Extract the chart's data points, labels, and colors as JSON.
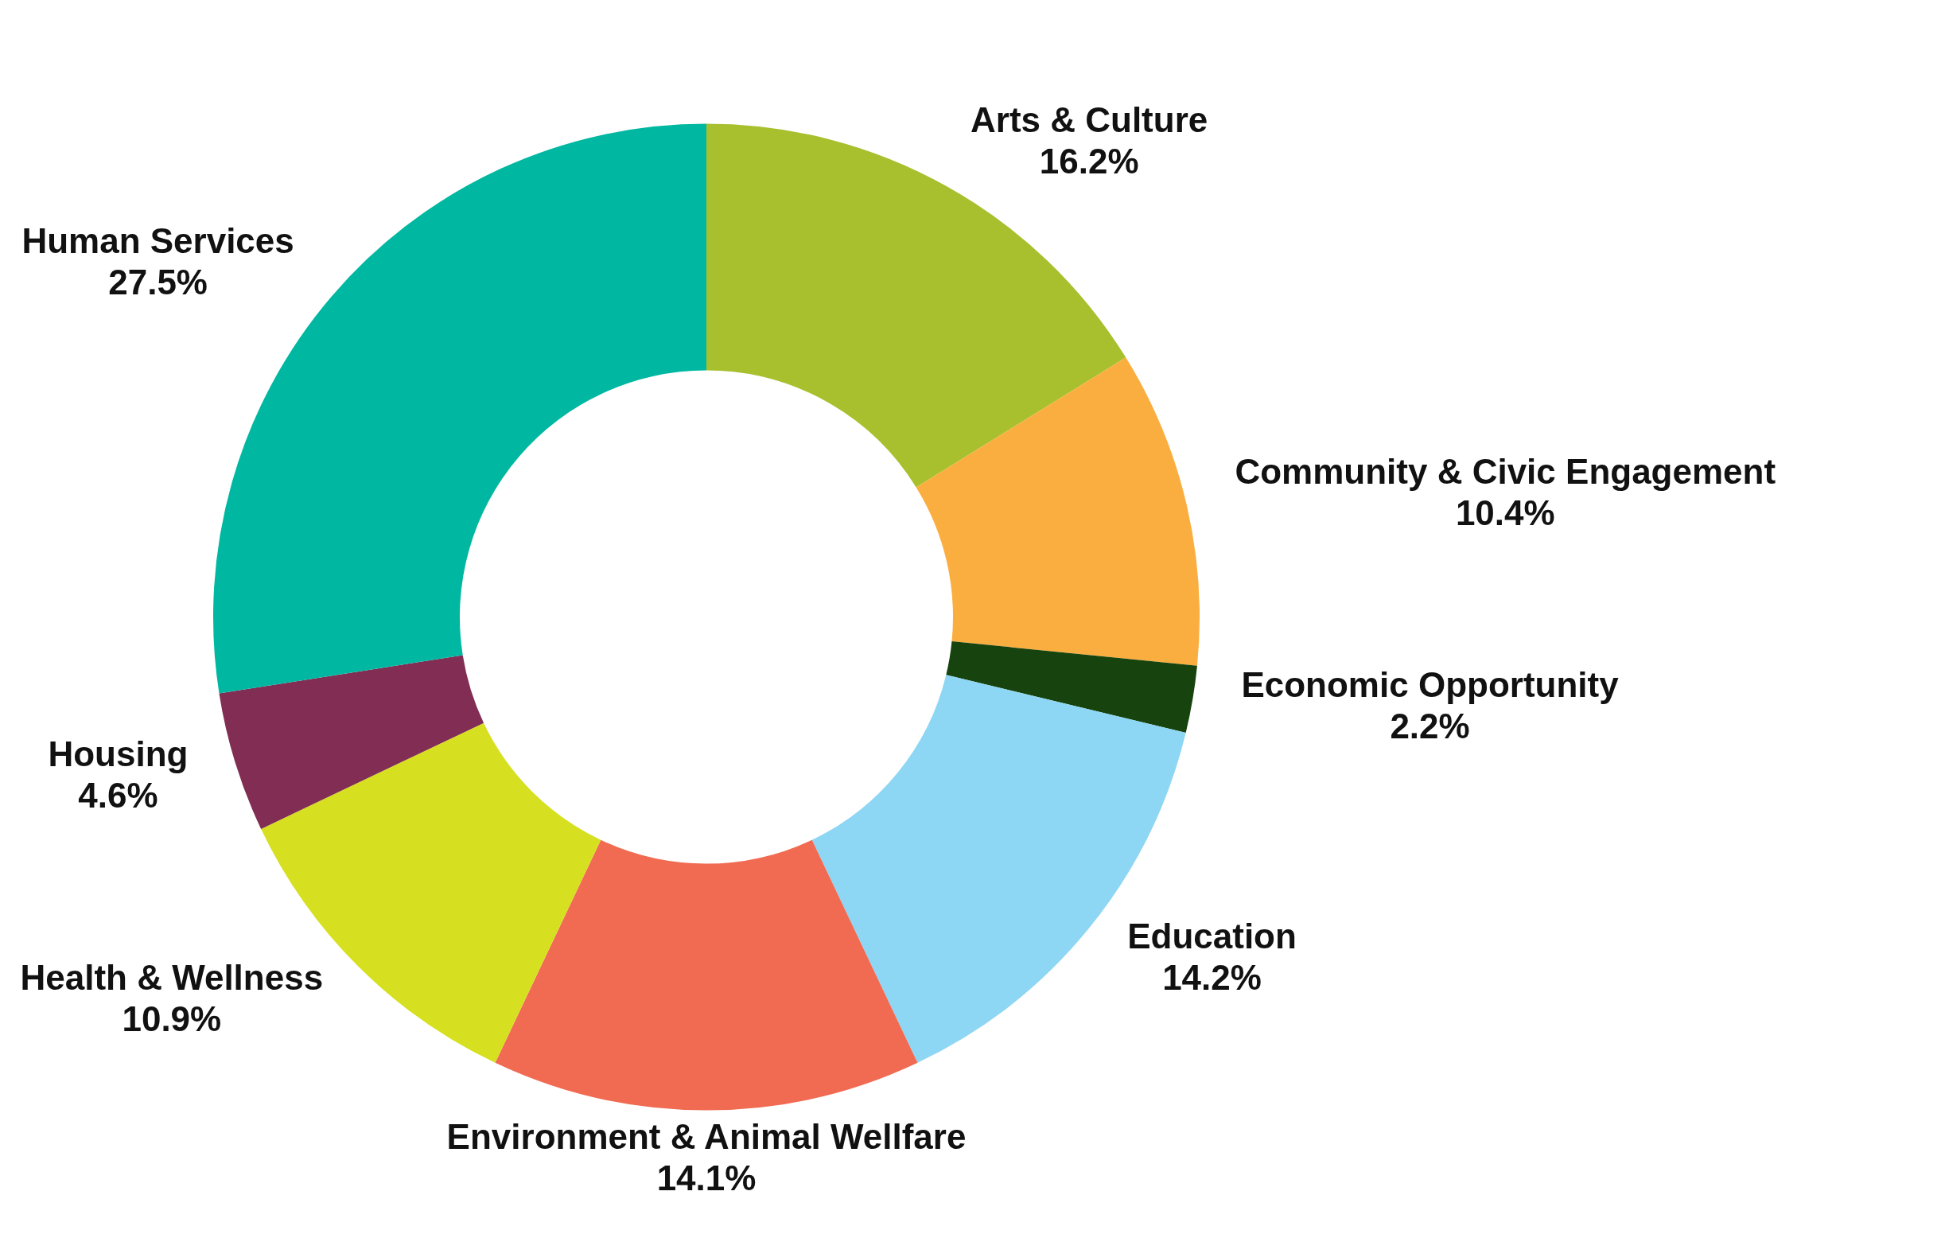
{
  "chart_data": {
    "type": "donut",
    "categories": [
      "Arts & Culture",
      "Community & Civic Engagement",
      "Economic Opportunity",
      "Education",
      "Environment & Animal Wellfare",
      "Health & Wellness",
      "Housing",
      "Human Services"
    ],
    "values": [
      16.2,
      10.4,
      2.2,
      14.2,
      14.1,
      10.9,
      4.6,
      27.5
    ],
    "value_labels": [
      "16.2%",
      "10.4%",
      "2.2%",
      "14.2%",
      "14.1%",
      "10.9%",
      "4.6%",
      "27.5%"
    ],
    "colors": [
      "#a8c02e",
      "#fbae40",
      "#17440e",
      "#8dd6f4",
      "#f06b52",
      "#d6e020",
      "#812d54",
      "#00b8a1"
    ],
    "legend": false
  }
}
